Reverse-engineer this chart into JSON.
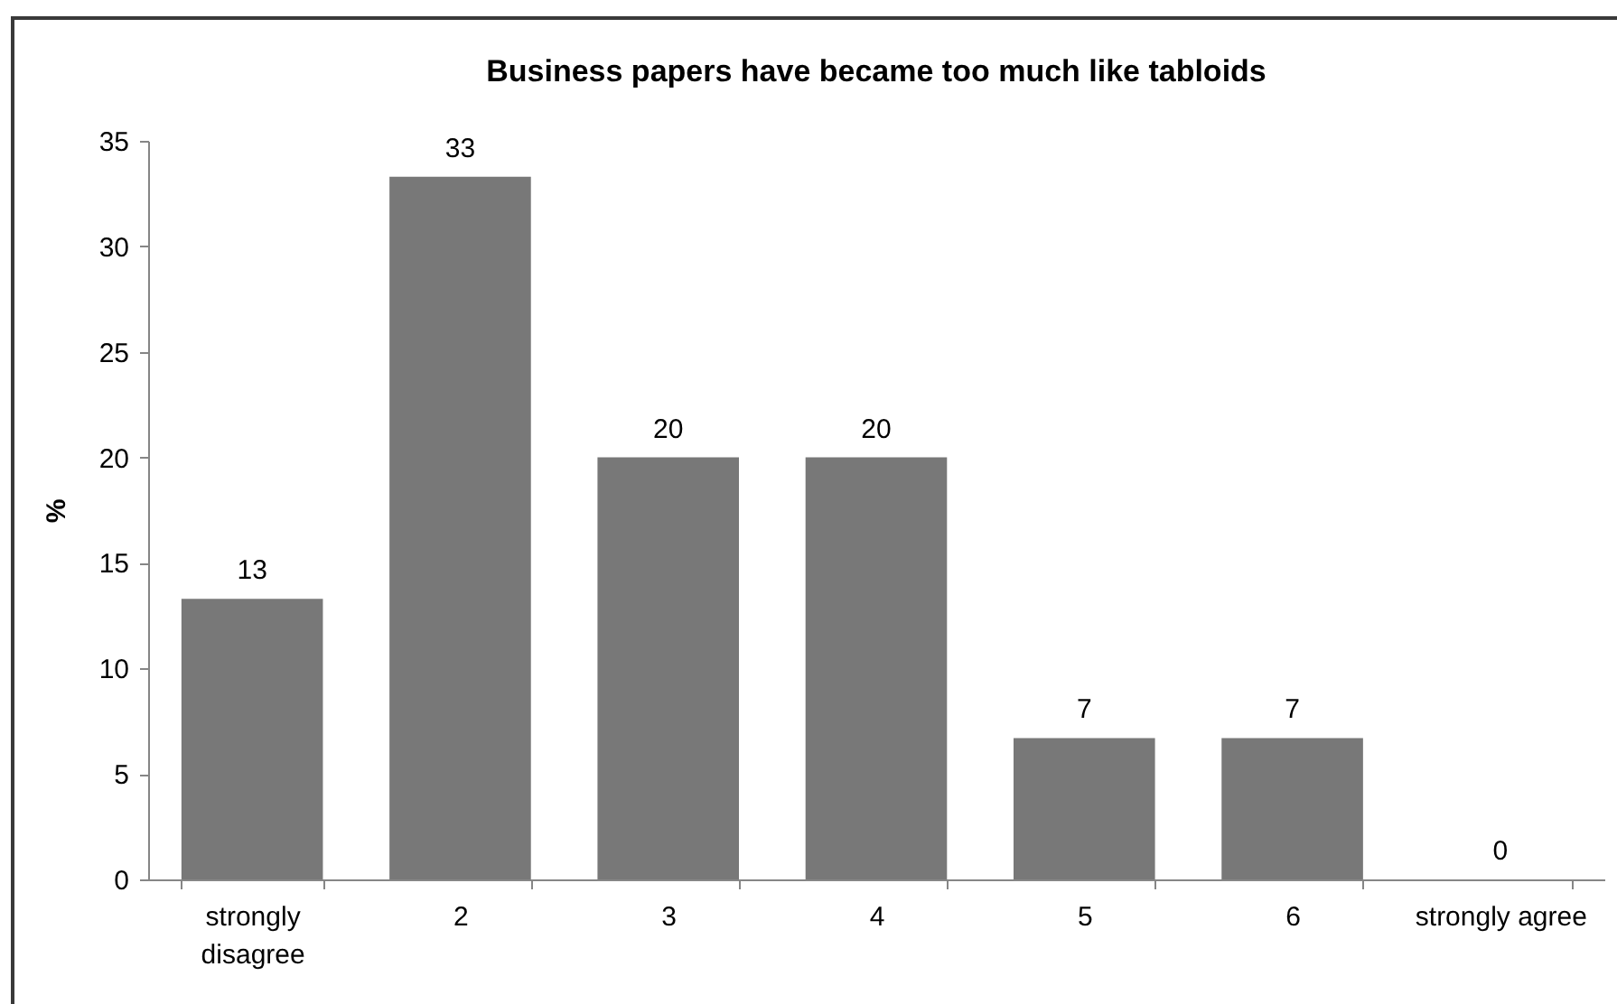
{
  "chart_data": {
    "type": "bar",
    "title": "Business papers have became too much like tabloids",
    "ylabel": "%",
    "categories": [
      "strongly disagree",
      "2",
      "3",
      "4",
      "5",
      "6",
      "strongly agree"
    ],
    "values": [
      13.3,
      33.3,
      20,
      20,
      6.7,
      6.7,
      0
    ],
    "value_labels": [
      "13",
      "33",
      "20",
      "20",
      "7",
      "7",
      "0"
    ],
    "color": "#787878",
    "ylim": [
      0,
      35
    ],
    "yticks": [
      0,
      5,
      10,
      15,
      20,
      25,
      30,
      35
    ],
    "grid": false
  }
}
